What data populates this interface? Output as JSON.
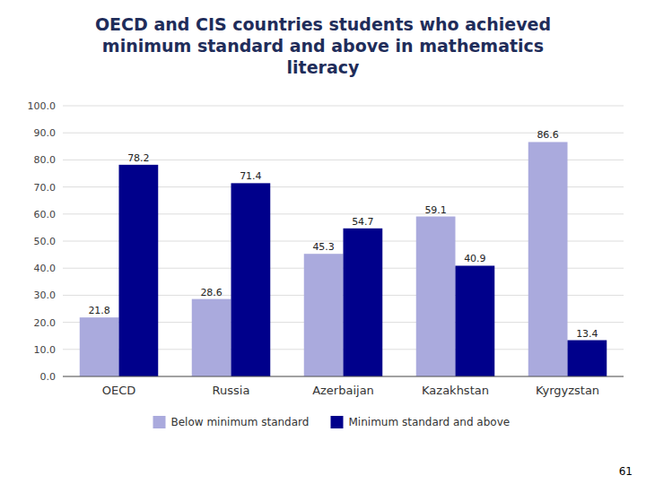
{
  "chart_data": {
    "type": "bar",
    "title": "OECD and CIS countries students who achieved\nminimum standard and above in mathematics\nliteracy",
    "categories": [
      "OECD",
      "Russia",
      "Azerbaijan",
      "Kazakhstan",
      "Kyrgyzstan"
    ],
    "series": [
      {
        "name": "Below minimum standard",
        "color": "#aaaadd",
        "values": [
          21.8,
          28.6,
          45.3,
          59.1,
          86.6
        ]
      },
      {
        "name": "Minimum standard and above",
        "color": "#00008b",
        "values": [
          78.2,
          71.4,
          54.7,
          40.9,
          13.4
        ]
      }
    ],
    "ylim": [
      0,
      100
    ],
    "yticks": [
      {
        "value": 0,
        "label": "0.0"
      },
      {
        "value": 10,
        "label": "10.0"
      },
      {
        "value": 20,
        "label": "20.0"
      },
      {
        "value": 30,
        "label": "30.0"
      },
      {
        "value": 40,
        "label": "40.0"
      },
      {
        "value": 50,
        "label": "50.0"
      },
      {
        "value": 60,
        "label": "60.0"
      },
      {
        "value": 70,
        "label": "70.0"
      },
      {
        "value": 80,
        "label": "80.0"
      },
      {
        "value": 90,
        "label": "90.0"
      },
      {
        "value": 100,
        "label": "100.0"
      }
    ],
    "grid": true,
    "data_labels": true,
    "legend": "bottom",
    "annotations": [
      "61"
    ]
  }
}
